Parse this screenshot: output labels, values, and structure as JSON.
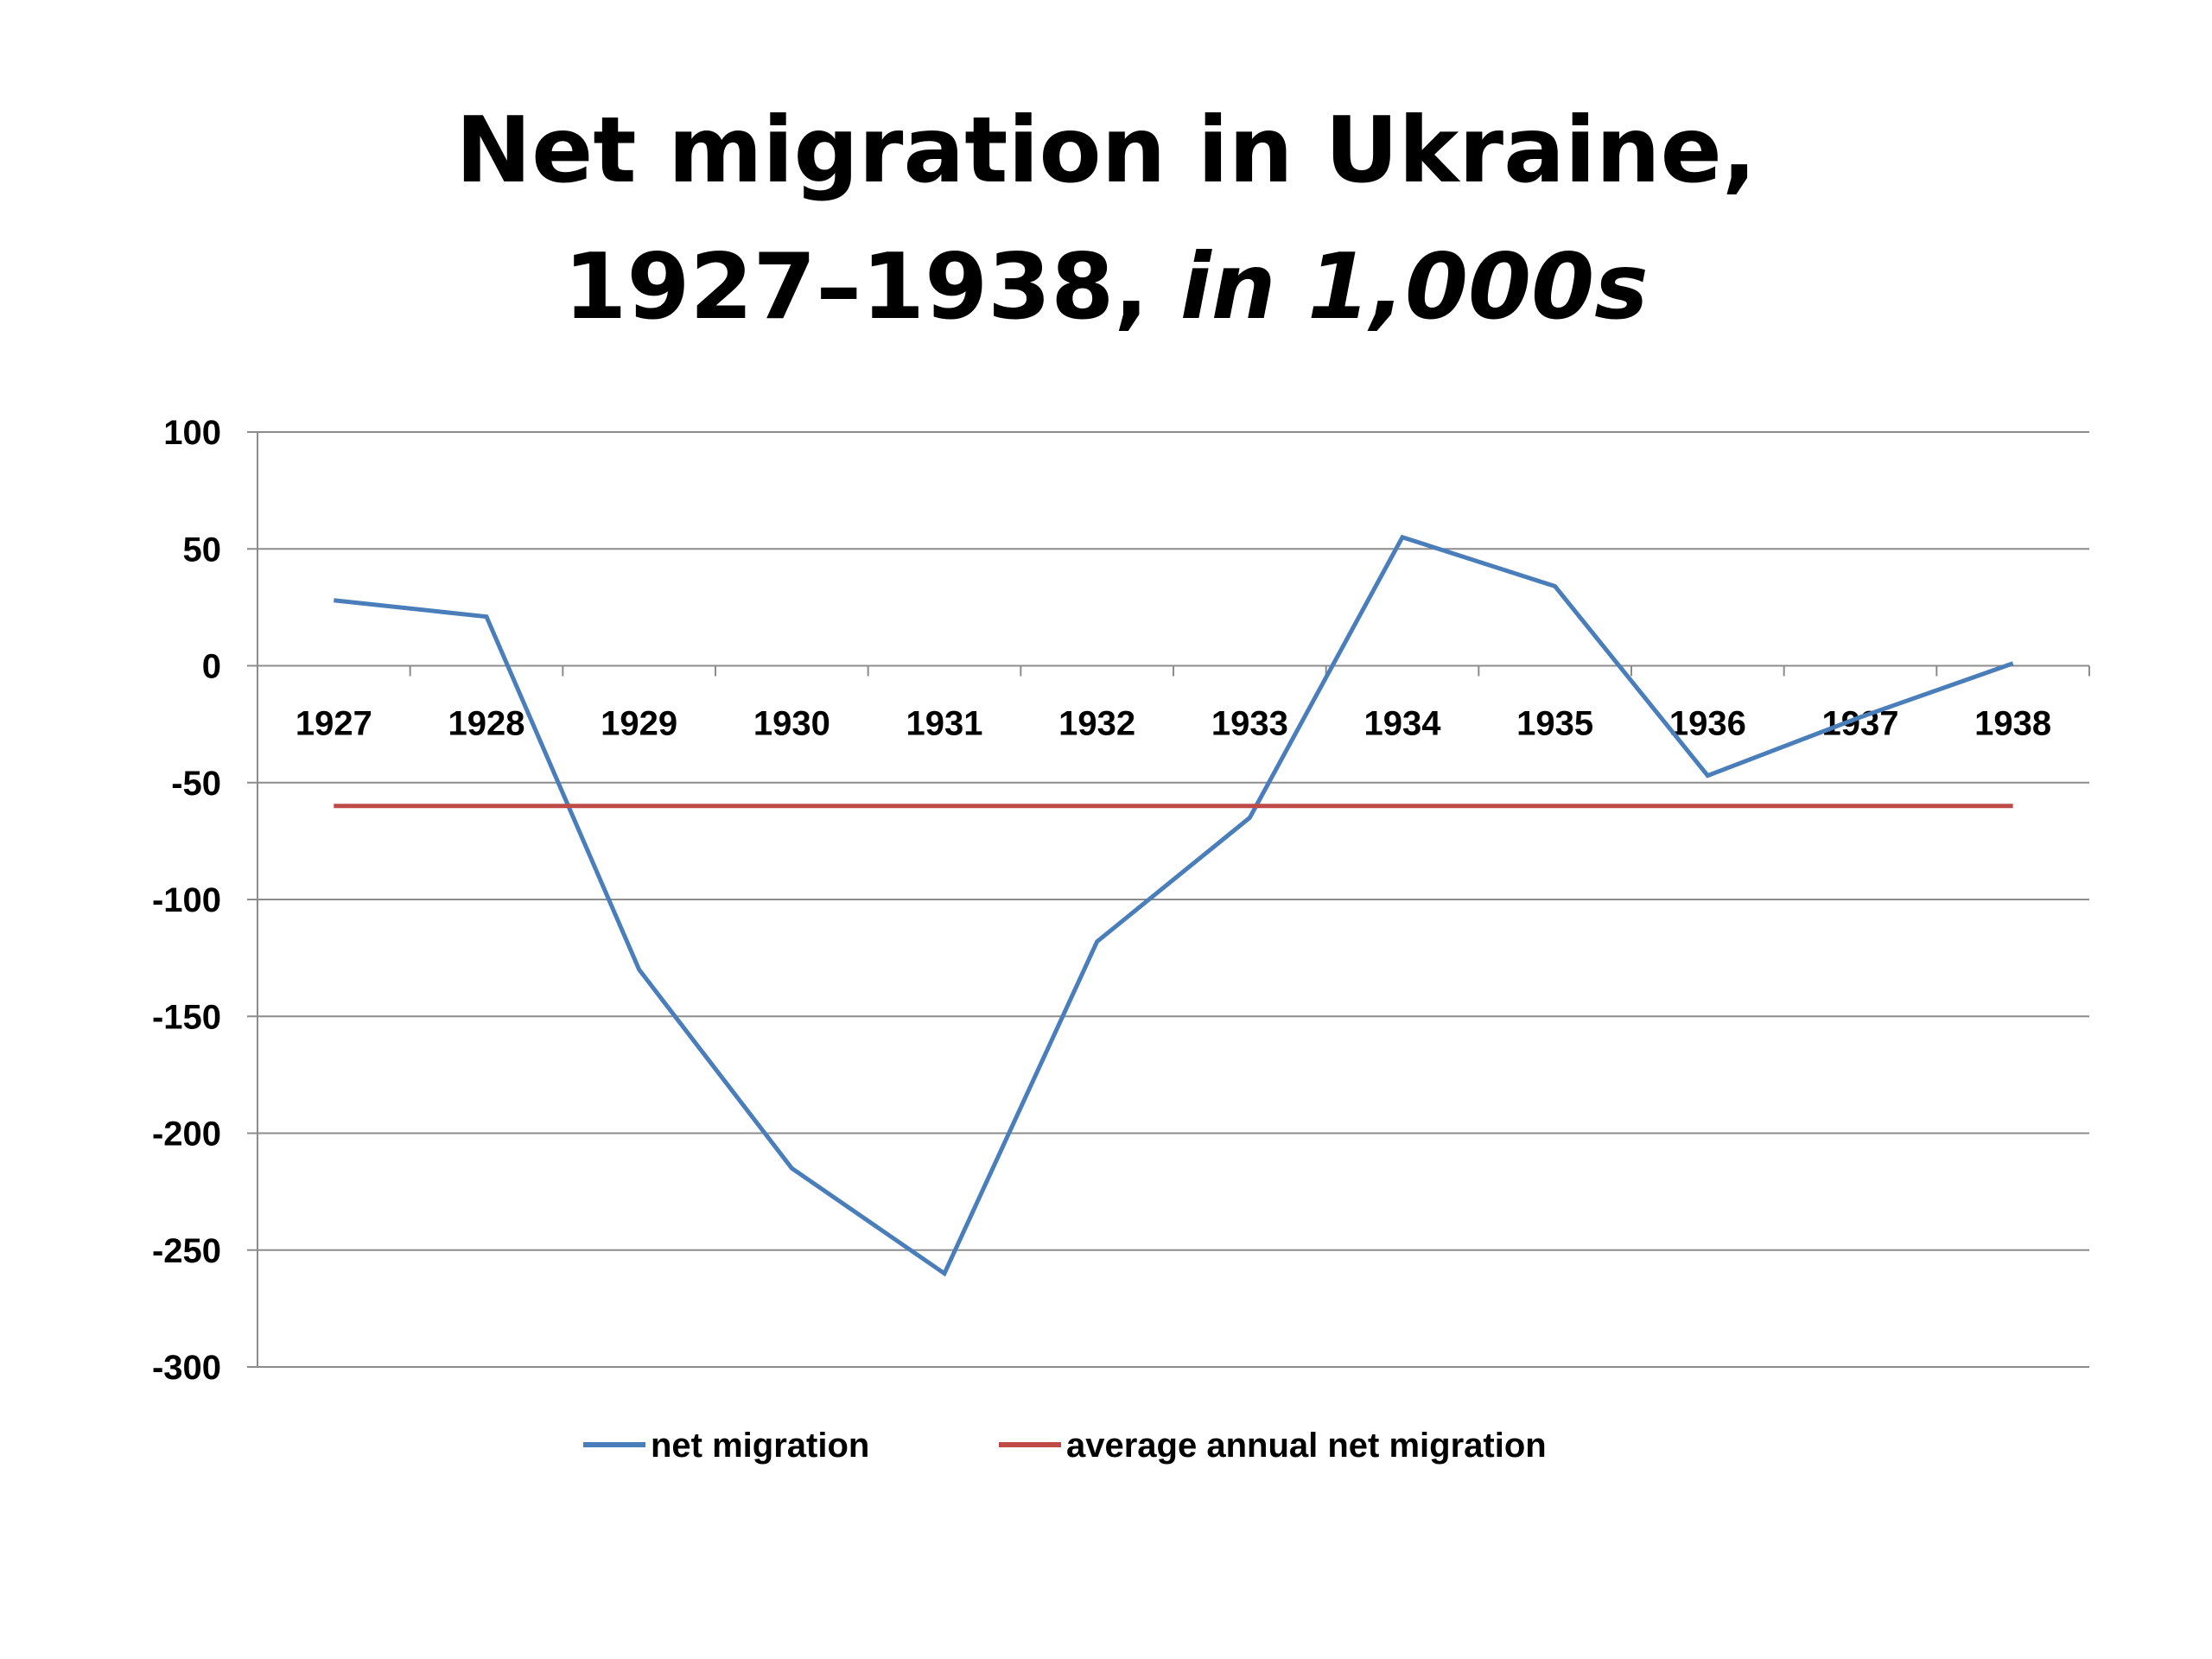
{
  "title": {
    "line1": "Net migration in Ukraine,",
    "line2_main": "1927–1938,",
    "line2_italic": "in 1,000s"
  },
  "chart_data": {
    "type": "line",
    "x": [
      "1927",
      "1928",
      "1929",
      "1930",
      "1931",
      "1932",
      "1933",
      "1934",
      "1935",
      "1936",
      "1937",
      "1938"
    ],
    "series": [
      {
        "name": "net migration",
        "color": "#4a7ebb",
        "values": [
          28,
          21,
          -130,
          -215,
          -260,
          -118,
          -65,
          55,
          34,
          -47,
          -22,
          1
        ]
      },
      {
        "name": "average annual net migration",
        "color": "#be4b48",
        "values": [
          -60,
          -60,
          -60,
          -60,
          -60,
          -60,
          -60,
          -60,
          -60,
          -60,
          -60,
          -60
        ]
      }
    ],
    "yticks": [
      "100",
      "50",
      "0",
      "-50",
      "-100",
      "-150",
      "-200",
      "-250",
      "-300"
    ],
    "ylim": [
      -300,
      100
    ],
    "grid": true,
    "legend": "bottom"
  }
}
